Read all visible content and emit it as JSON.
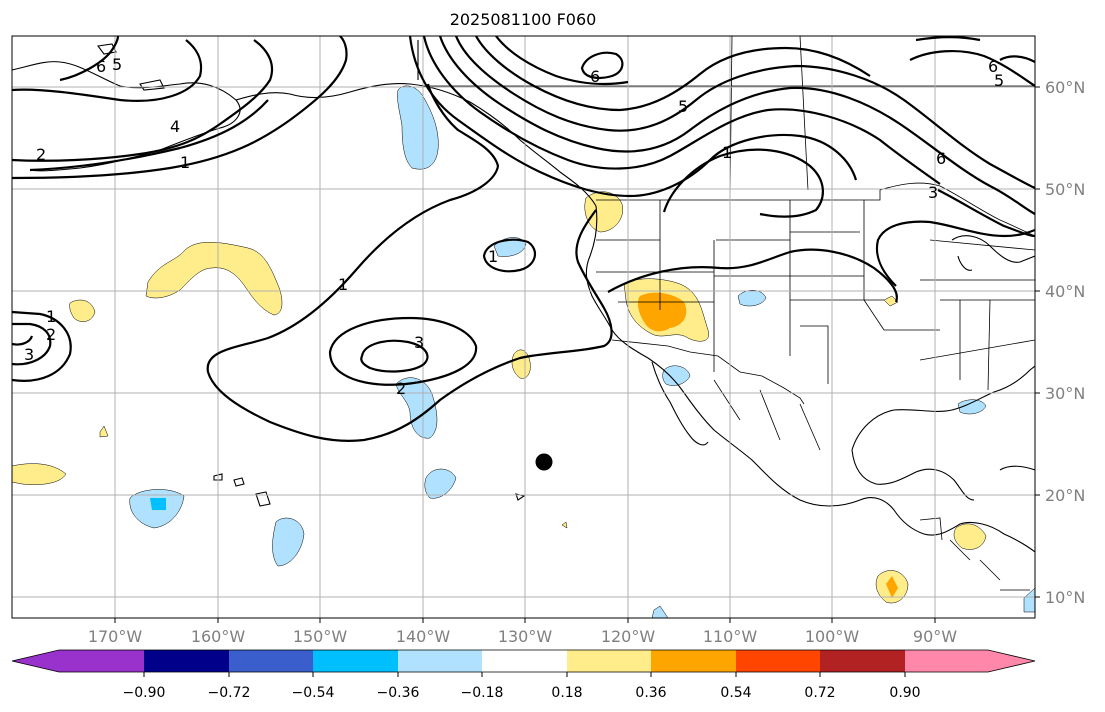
{
  "title": "2025081100 F060",
  "lon_ticks": [
    "170°W",
    "160°W",
    "150°W",
    "140°W",
    "130°W",
    "120°W",
    "110°W",
    "100°W",
    "90°W"
  ],
  "lat_ticks": [
    "60°N",
    "50°N",
    "40°N",
    "30°N",
    "20°N",
    "10°N"
  ],
  "colorbar": {
    "ticks": [
      "−0.90",
      "−0.72",
      "−0.54",
      "−0.36",
      "−0.18",
      "0.18",
      "0.36",
      "0.54",
      "0.72",
      "0.90"
    ],
    "colors": [
      "#9932cc",
      "#00008b",
      "#3a5fcd",
      "#00bfff",
      "#b0e2ff",
      "#ffffff",
      "#ffec8b",
      "#ffa500",
      "#ff4500",
      "#b22222",
      "#ff88aa"
    ]
  },
  "contour_labels": [
    "6",
    "5",
    "4",
    "2",
    "1",
    "6",
    "5",
    "1",
    "6",
    "3",
    "1",
    "1",
    "3",
    "2",
    "1",
    "3",
    "2",
    "6",
    "5"
  ],
  "colors": {
    "positive_light": "#ffec8b",
    "positive_mid": "#ffa500",
    "negative_light": "#b0e2ff",
    "negative_mid": "#00bfff",
    "grid": "#b0b0b0"
  }
}
